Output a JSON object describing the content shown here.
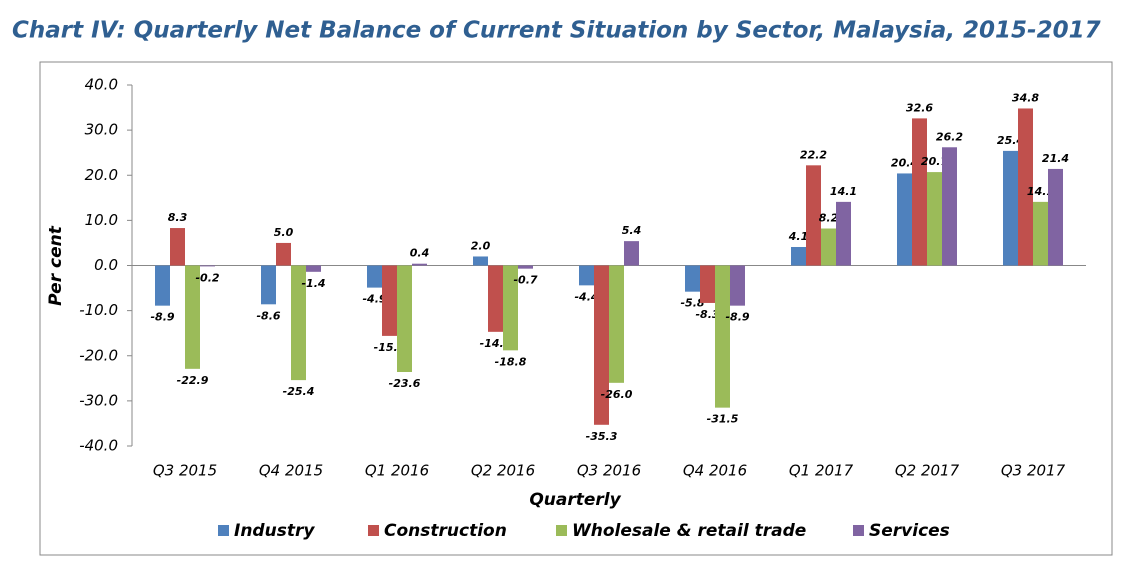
{
  "chart_data": {
    "type": "bar",
    "title": "Chart IV: Quarterly Net Balance of Current Situation by Sector, Malaysia, 2015-2017",
    "x_label": "Quarterly",
    "y_label": "Per cent",
    "categories": [
      "Q3 2015",
      "Q4 2015",
      "Q1 2016",
      "Q2 2016",
      "Q3 2016",
      "Q4 2016",
      "Q1 2017",
      "Q2 2017",
      "Q3 2017"
    ],
    "series": [
      {
        "name": "Industry",
        "color": "#4f81bd",
        "values": [
          -8.9,
          -8.6,
          -4.9,
          2.0,
          -4.4,
          -5.8,
          4.1,
          20.4,
          25.4
        ],
        "value_labels": [
          "-8.9",
          "-8.6",
          "-4.9",
          "2.0",
          "-4.4",
          "-5.8",
          "4.1",
          "20.4",
          "25.4"
        ]
      },
      {
        "name": "Construction",
        "color": "#c0504d",
        "values": [
          8.3,
          5.0,
          -15.6,
          -14.7,
          -35.3,
          -8.3,
          22.2,
          32.6,
          34.8
        ],
        "value_labels": [
          "8.3",
          "5.0",
          "-15.6",
          "-14.7",
          "-35.3",
          "-8.3",
          "22.2",
          "32.6",
          "34.8"
        ]
      },
      {
        "name": "Wholesale & retail trade",
        "color": "#9bbb59",
        "values": [
          -22.9,
          -25.4,
          -23.6,
          -18.8,
          -26.0,
          -31.5,
          8.2,
          20.7,
          14.1
        ],
        "value_labels": [
          "-22.9",
          "-25.4",
          "-23.6",
          "-18.8",
          "-26.0",
          "-31.5",
          "8.2",
          "20.7",
          "14.1"
        ]
      },
      {
        "name": "Services",
        "color": "#8064a2",
        "values": [
          -0.2,
          -1.4,
          0.4,
          -0.7,
          5.4,
          -8.9,
          14.1,
          26.2,
          21.4
        ],
        "value_labels": [
          "-0.2",
          "-1.4",
          "0.4",
          "-0.7",
          "5.4",
          "-8.9",
          "14.1",
          "26.2",
          "21.4"
        ]
      }
    ],
    "ylim": [
      -40,
      40
    ],
    "yticks": [
      {
        "value": -40,
        "label": "-40.0"
      },
      {
        "value": -30,
        "label": "-30.0"
      },
      {
        "value": -20,
        "label": "-20.0"
      },
      {
        "value": -10,
        "label": "-10.0"
      },
      {
        "value": 0,
        "label": "0.0"
      },
      {
        "value": 10,
        "label": "10.0"
      },
      {
        "value": 20,
        "label": "20.0"
      },
      {
        "value": 30,
        "label": "30.0"
      },
      {
        "value": 40,
        "label": "40.0"
      }
    ],
    "grid": false,
    "legend": "bottom"
  }
}
